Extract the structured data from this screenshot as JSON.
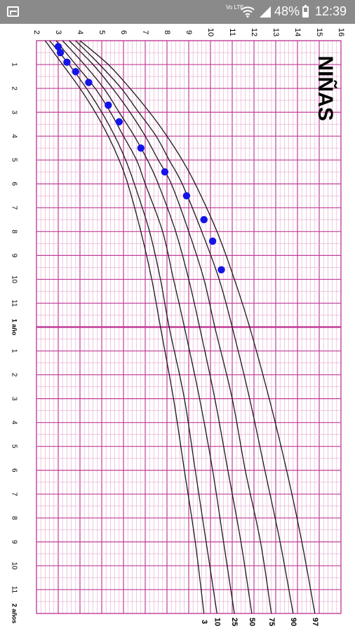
{
  "status_bar": {
    "volte_label": "Vo LTE",
    "battery_text": "48%",
    "time": "12:39",
    "icons": [
      "app-icon",
      "wifi-icon",
      "signal-icon",
      "battery-icon"
    ]
  },
  "chart_data": {
    "type": "line",
    "title": "NIÑAS",
    "orientation": "rotated-90-clockwise",
    "x_axis": {
      "description": "age in months, running downward on screen",
      "range": [
        0,
        24
      ],
      "tick_labels": [
        "1",
        "2",
        "3",
        "4",
        "5",
        "6",
        "7",
        "8",
        "9",
        "10",
        "11",
        "1 año",
        "1",
        "2",
        "3",
        "4",
        "5",
        "6",
        "7",
        "8",
        "9",
        "10",
        "11",
        "2 años"
      ],
      "tick_values": [
        1,
        2,
        3,
        4,
        5,
        6,
        7,
        8,
        9,
        10,
        11,
        12,
        13,
        14,
        15,
        16,
        17,
        18,
        19,
        20,
        21,
        22,
        23,
        24
      ]
    },
    "y_axis": {
      "description": "weight in kg, running left-to-right on screen",
      "range": [
        2,
        16
      ],
      "tick_labels": [
        "2",
        "3",
        "4",
        "5",
        "6",
        "7",
        "8",
        "9",
        "10",
        "11",
        "12",
        "13",
        "14",
        "15",
        "16"
      ],
      "tick_values": [
        2,
        3,
        4,
        5,
        6,
        7,
        8,
        9,
        10,
        11,
        12,
        13,
        14,
        15,
        16
      ]
    },
    "grid": true,
    "series": [
      {
        "name": "3",
        "x": [
          0,
          1,
          2,
          3,
          4,
          5,
          6,
          8,
          10,
          12,
          15,
          18,
          21,
          24
        ],
        "y": [
          2.4,
          3.2,
          4.0,
          4.7,
          5.3,
          5.8,
          6.2,
          6.8,
          7.3,
          7.7,
          8.3,
          8.8,
          9.3,
          9.7
        ]
      },
      {
        "name": "10",
        "x": [
          0,
          1,
          2,
          3,
          4,
          5,
          6,
          8,
          10,
          12,
          15,
          18,
          21,
          24
        ],
        "y": [
          2.6,
          3.5,
          4.3,
          5.0,
          5.6,
          6.1,
          6.5,
          7.2,
          7.7,
          8.1,
          8.8,
          9.3,
          9.8,
          10.3
        ]
      },
      {
        "name": "25",
        "x": [
          0,
          1,
          2,
          3,
          4,
          5,
          6,
          8,
          10,
          12,
          15,
          18,
          21,
          24
        ],
        "y": [
          2.9,
          3.8,
          4.7,
          5.4,
          6.0,
          6.6,
          7.0,
          7.8,
          8.3,
          8.8,
          9.5,
          10.1,
          10.6,
          11.1
        ]
      },
      {
        "name": "50",
        "x": [
          0,
          1,
          2,
          3,
          4,
          5,
          6,
          8,
          10,
          12,
          15,
          18,
          21,
          24
        ],
        "y": [
          3.2,
          4.2,
          5.1,
          5.8,
          6.5,
          7.1,
          7.6,
          8.4,
          9.0,
          9.5,
          10.2,
          10.8,
          11.4,
          11.9
        ]
      },
      {
        "name": "75",
        "x": [
          0,
          1,
          2,
          3,
          4,
          5,
          6,
          8,
          10,
          12,
          15,
          18,
          21,
          24
        ],
        "y": [
          3.5,
          4.6,
          5.5,
          6.3,
          7.0,
          7.6,
          8.2,
          9.0,
          9.7,
          10.2,
          11.0,
          11.6,
          12.3,
          12.8
        ]
      },
      {
        "name": "90",
        "x": [
          0,
          1,
          2,
          3,
          4,
          5,
          6,
          8,
          10,
          12,
          15,
          18,
          21,
          24
        ],
        "y": [
          3.8,
          4.9,
          5.9,
          6.7,
          7.5,
          8.1,
          8.7,
          9.6,
          10.4,
          11.0,
          11.8,
          12.5,
          13.2,
          13.8
        ]
      },
      {
        "name": "97",
        "x": [
          0,
          1,
          2,
          3,
          4,
          5,
          6,
          8,
          10,
          12,
          15,
          18,
          21,
          24
        ],
        "y": [
          4.0,
          5.3,
          6.3,
          7.2,
          8.0,
          8.7,
          9.3,
          10.3,
          11.1,
          11.8,
          12.7,
          13.5,
          14.2,
          14.8
        ]
      }
    ],
    "points": [
      {
        "x": 0.25,
        "y": 3.0
      },
      {
        "x": 0.5,
        "y": 3.1
      },
      {
        "x": 0.9,
        "y": 3.4
      },
      {
        "x": 1.3,
        "y": 3.8
      },
      {
        "x": 1.75,
        "y": 4.4
      },
      {
        "x": 2.7,
        "y": 5.3
      },
      {
        "x": 3.4,
        "y": 5.8
      },
      {
        "x": 4.5,
        "y": 6.8
      },
      {
        "x": 5.5,
        "y": 7.9
      },
      {
        "x": 6.5,
        "y": 8.9
      },
      {
        "x": 7.5,
        "y": 9.7
      },
      {
        "x": 8.4,
        "y": 10.1
      },
      {
        "x": 9.6,
        "y": 10.5
      }
    ],
    "colors": {
      "grid_minor": "#e3a6cf",
      "grid_major": "#c03d96",
      "curve": "#1a1a1a",
      "point": "#1414e6"
    }
  }
}
